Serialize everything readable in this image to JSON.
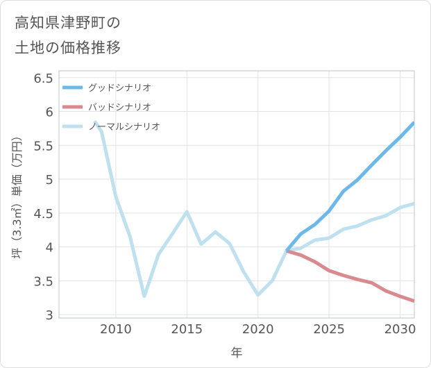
{
  "title_lines": [
    "高知県津野町の",
    "土地の価格推移"
  ],
  "colors": {
    "good": "#6cb8ea",
    "bad": "#d98a8f",
    "normal": "#bfe0ef",
    "axis": "#555555",
    "grid": "#e3e3e3",
    "frame": "#b7c3cf",
    "text": "#555555"
  },
  "chart_data": {
    "type": "line",
    "title": "高知県津野町の土地の価格推移",
    "xlabel": "年",
    "ylabel": "坪（3.3㎡）単価（万円）",
    "xlim": [
      2006,
      2031
    ],
    "ylim": [
      2.95,
      6.6
    ],
    "xticks": [
      2010,
      2015,
      2020,
      2025,
      2030
    ],
    "xtick_labels": [
      "2010",
      "2015",
      "2020",
      "2025",
      "2030"
    ],
    "yticks": [
      3,
      3.5,
      4,
      4.5,
      5,
      5.5,
      6,
      6.5
    ],
    "ytick_labels": [
      "3",
      "3.5",
      "4",
      "4.5",
      "5",
      "5.5",
      "6",
      "6.5"
    ],
    "legend_position": "top-left",
    "series": [
      {
        "name": "グッドシナリオ",
        "color_key": "good",
        "x": [
          2022,
          2023,
          2024,
          2025,
          2026,
          2027,
          2028,
          2029,
          2030,
          2031
        ],
        "y": [
          3.94,
          4.19,
          4.33,
          4.53,
          4.82,
          4.99,
          5.21,
          5.42,
          5.62,
          5.84
        ]
      },
      {
        "name": "バッドシナリオ",
        "color_key": "bad",
        "x": [
          2022,
          2023,
          2024,
          2025,
          2026,
          2027,
          2028,
          2029,
          2030,
          2031
        ],
        "y": [
          3.94,
          3.88,
          3.78,
          3.65,
          3.58,
          3.52,
          3.47,
          3.35,
          3.27,
          3.2
        ]
      },
      {
        "name": "ノーマルシナリオ",
        "color_key": "normal",
        "x": [
          2008.5,
          2009,
          2010,
          2011,
          2012,
          2013,
          2014,
          2015,
          2016,
          2017,
          2018,
          2019,
          2020,
          2021,
          2022,
          2023,
          2024,
          2025,
          2026,
          2027,
          2028,
          2029,
          2030,
          2031
        ],
        "y": [
          5.86,
          5.7,
          4.74,
          4.15,
          3.27,
          3.89,
          4.2,
          4.52,
          4.04,
          4.22,
          4.05,
          3.63,
          3.29,
          3.5,
          3.94,
          3.98,
          4.1,
          4.13,
          4.26,
          4.31,
          4.4,
          4.46,
          4.58,
          4.64
        ]
      }
    ]
  }
}
